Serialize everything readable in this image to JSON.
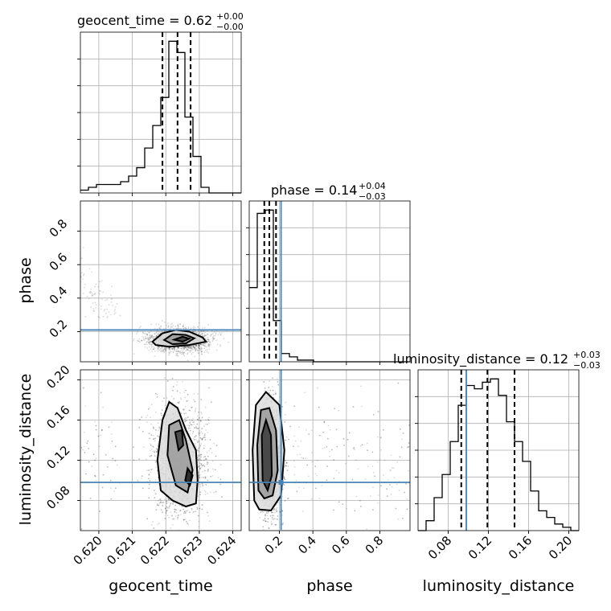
{
  "chart_data": {
    "type": "corner",
    "parameters": [
      "geocent_time",
      "phase",
      "luminosity_distance"
    ],
    "truths": {
      "phase": 0.21,
      "luminosity_distance": 0.098
    },
    "titles": [
      {
        "param": "geocent_time",
        "text": "geocent_time = 0.62",
        "sup": "+0.00",
        "sub": "−0.00"
      },
      {
        "param": "phase",
        "text": "phase = 0.14",
        "sup": "+0.04",
        "sub": "−0.03"
      },
      {
        "param": "luminosity_distance",
        "text": "luminosity_distance = 0.12",
        "sup": "+0.03",
        "sub": "−0.03"
      }
    ],
    "axes": {
      "geocent_time": {
        "range": [
          0.61945,
          0.62425
        ],
        "ticks": [
          0.62,
          0.621,
          0.622,
          0.623,
          0.624
        ],
        "tick_labels": [
          "0.620",
          "0.621",
          "0.622",
          "0.623",
          "0.624"
        ],
        "label": "geocent_time"
      },
      "phase": {
        "range": [
          0.02,
          0.98
        ],
        "ticks": [
          0.2,
          0.4,
          0.6,
          0.8
        ],
        "tick_labels": [
          "0.2",
          "0.4",
          "0.6",
          "0.8"
        ],
        "label": "phase"
      },
      "luminosity_distance": {
        "range": [
          0.05,
          0.21
        ],
        "ticks": [
          0.08,
          0.12,
          0.16,
          0.2
        ],
        "tick_labels": [
          "0.08",
          "0.12",
          "0.16",
          "0.20"
        ],
        "label": "luminosity_distance"
      }
    },
    "histograms": {
      "geocent_time": {
        "bin_edges": [
          0.61945,
          0.61969,
          0.61993,
          0.62017,
          0.62041,
          0.62065,
          0.62089,
          0.62113,
          0.62137,
          0.62161,
          0.62185,
          0.62209,
          0.62233,
          0.62257,
          0.62281,
          0.62305,
          0.62329,
          0.62353,
          0.62377,
          0.62401,
          0.62425
        ],
        "counts": [
          1,
          2,
          3,
          3,
          3,
          4,
          6,
          9,
          16,
          24,
          34,
          54,
          50,
          27,
          13,
          2,
          0,
          0,
          0,
          0
        ],
        "quantiles": [
          0.6219,
          0.62235,
          0.62274
        ]
      },
      "phase": {
        "bin_edges": [
          0.02,
          0.068,
          0.116,
          0.164,
          0.212,
          0.26,
          0.308,
          0.356,
          0.404,
          0.452,
          0.5,
          0.548,
          0.596,
          0.644,
          0.692,
          0.74,
          0.788,
          0.836,
          0.884,
          0.932,
          0.98
        ],
        "counts": [
          45,
          90,
          92,
          25,
          5,
          3,
          1,
          1,
          0,
          0,
          0,
          0,
          0,
          0,
          0,
          0,
          0,
          0,
          0,
          0
        ],
        "quantiles": [
          0.11,
          0.14,
          0.18
        ]
      },
      "luminosity_distance": {
        "bin_edges": [
          0.05,
          0.058,
          0.066,
          0.074,
          0.082,
          0.09,
          0.098,
          0.106,
          0.114,
          0.122,
          0.13,
          0.138,
          0.146,
          0.154,
          0.162,
          0.17,
          0.178,
          0.186,
          0.194,
          0.202,
          0.21
        ],
        "counts": [
          0,
          3,
          10,
          17,
          27,
          38,
          44,
          43,
          45,
          46,
          41,
          33,
          27,
          21,
          12,
          6,
          4,
          2,
          1,
          0
        ],
        "quantiles": [
          0.093,
          0.119,
          0.146
        ]
      }
    },
    "contours_2d": [
      {
        "x": "geocent_time",
        "y": "phase",
        "levels": [
          [
            [
              0.6216,
              0.14
            ],
            [
              0.6219,
              0.19
            ],
            [
              0.6223,
              0.21
            ],
            [
              0.6227,
              0.2
            ],
            [
              0.6231,
              0.165
            ],
            [
              0.6232,
              0.14
            ],
            [
              0.6227,
              0.12
            ],
            [
              0.6221,
              0.11
            ],
            [
              0.6217,
              0.12
            ]
          ],
          [
            [
              0.62195,
              0.15
            ],
            [
              0.6222,
              0.185
            ],
            [
              0.6226,
              0.18
            ],
            [
              0.62285,
              0.16
            ],
            [
              0.6226,
              0.13
            ],
            [
              0.6222,
              0.125
            ]
          ],
          [
            [
              0.62225,
              0.152
            ],
            [
              0.6225,
              0.17
            ],
            [
              0.6227,
              0.158
            ],
            [
              0.6225,
              0.14
            ]
          ]
        ]
      },
      {
        "x": "geocent_time",
        "y": "luminosity_distance",
        "levels": [
          [
            [
              0.6219,
              0.16
            ],
            [
              0.6221,
              0.178
            ],
            [
              0.62235,
              0.172
            ],
            [
              0.6226,
              0.15
            ],
            [
              0.6229,
              0.13
            ],
            [
              0.62295,
              0.1
            ],
            [
              0.6229,
              0.077
            ],
            [
              0.6226,
              0.074
            ],
            [
              0.6222,
              0.08
            ],
            [
              0.62185,
              0.09
            ],
            [
              0.62175,
              0.12
            ]
          ],
          [
            [
              0.6221,
              0.155
            ],
            [
              0.6224,
              0.16
            ],
            [
              0.6226,
              0.14
            ],
            [
              0.6228,
              0.11
            ],
            [
              0.62265,
              0.088
            ],
            [
              0.6223,
              0.095
            ],
            [
              0.62205,
              0.125
            ]
          ],
          [
            [
              0.62228,
              0.148
            ],
            [
              0.62248,
              0.15
            ],
            [
              0.62252,
              0.135
            ],
            [
              0.62238,
              0.13
            ]
          ],
          [
            [
              0.62265,
              0.112
            ],
            [
              0.6228,
              0.105
            ],
            [
              0.62272,
              0.095
            ],
            [
              0.62258,
              0.1
            ]
          ]
        ]
      },
      {
        "x": "phase",
        "y": "luminosity_distance",
        "levels": [
          [
            [
              0.05,
              0.08
            ],
            [
              0.04,
              0.13
            ],
            [
              0.06,
              0.175
            ],
            [
              0.12,
              0.188
            ],
            [
              0.2,
              0.175
            ],
            [
              0.23,
              0.13
            ],
            [
              0.21,
              0.085
            ],
            [
              0.15,
              0.07
            ],
            [
              0.08,
              0.071
            ]
          ],
          [
            [
              0.075,
              0.09
            ],
            [
              0.068,
              0.135
            ],
            [
              0.09,
              0.17
            ],
            [
              0.14,
              0.172
            ],
            [
              0.18,
              0.15
            ],
            [
              0.19,
              0.11
            ],
            [
              0.16,
              0.085
            ],
            [
              0.11,
              0.082
            ]
          ],
          [
            [
              0.1,
              0.1
            ],
            [
              0.095,
              0.145
            ],
            [
              0.12,
              0.16
            ],
            [
              0.15,
              0.145
            ],
            [
              0.155,
              0.105
            ],
            [
              0.13,
              0.09
            ]
          ]
        ]
      }
    ],
    "scatter_note": ""
  }
}
